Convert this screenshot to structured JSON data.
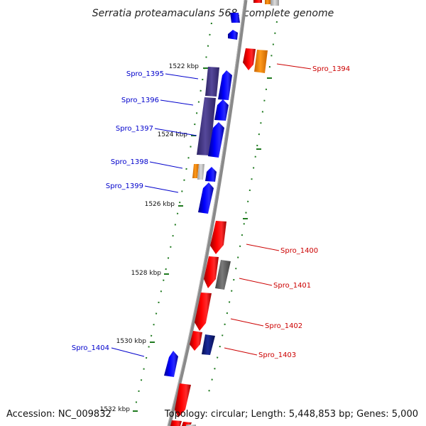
{
  "title": "Serratia proteamaculans 568, complete genome",
  "footer": {
    "accession": "Accession: NC_009832",
    "summary": "Topology: circular; Length: 5,448,853 bp; Genes: 5,000"
  },
  "colors": {
    "backbone": "#888888",
    "tick": "#1f7a1f",
    "forward_gene": "#0000ee",
    "reverse_gene": "#ee0000",
    "forward_label": "#0000cc",
    "reverse_label": "#cc0000",
    "forward_rna": "#4b3f8a",
    "rna_orange": "#ff8c00",
    "gray_feature": "#666666",
    "navy_feature": "#0a1a7a"
  },
  "ticks": [
    {
      "label": "1522 kbp"
    },
    {
      "label": "1524 kbp"
    },
    {
      "label": "1526 kbp"
    },
    {
      "label": "1528 kbp"
    },
    {
      "label": "1530 kbp"
    },
    {
      "label": "1532 kbp"
    }
  ],
  "genes": {
    "forward": [
      "Spro_1395",
      "Spro_1396",
      "Spro_1397",
      "Spro_1398",
      "Spro_1399",
      "Spro_1404"
    ],
    "reverse": [
      "Spro_1394",
      "Spro_1400",
      "Spro_1401",
      "Spro_1402",
      "Spro_1403"
    ]
  }
}
